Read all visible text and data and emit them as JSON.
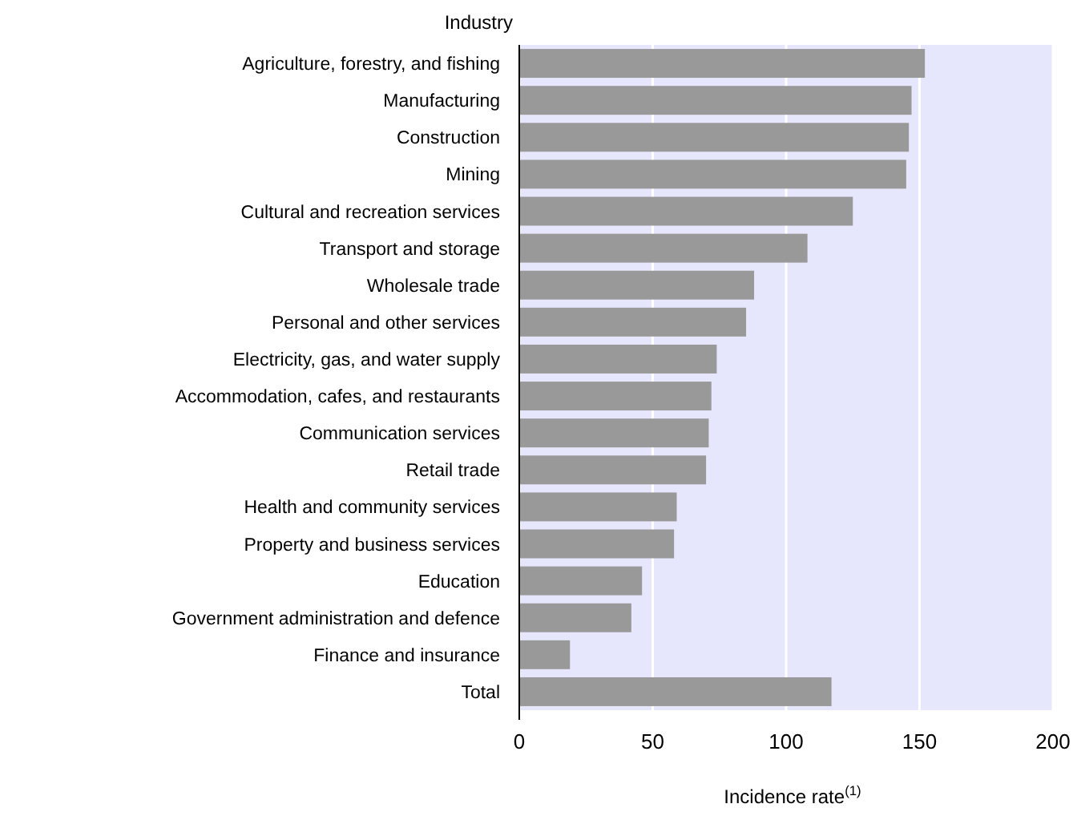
{
  "chart_data": {
    "type": "bar",
    "orientation": "horizontal",
    "ylabel": "Industry",
    "xlabel": "Incidence rate$^{(1)}$",
    "categories": [
      "Agriculture, forestry, and fishing",
      "Manufacturing",
      "Construction",
      "Mining",
      "Cultural and recreation services",
      "Transport and storage",
      "Wholesale trade",
      "Personal and other services",
      "Electricity, gas, and water supply",
      "Accommodation, cafes, and restaurants",
      "Communication services",
      "Retail trade",
      "Health and community services",
      "Property and business services",
      "Education",
      "Government administration and defence",
      "Finance and insurance",
      "Total"
    ],
    "values": [
      152,
      147,
      146,
      145,
      125,
      108,
      88,
      85,
      74,
      72,
      71,
      70,
      59,
      58,
      46,
      42,
      19,
      117
    ],
    "color": "#999999",
    "xlim": [
      0,
      200
    ],
    "xticks": [
      0,
      50,
      100,
      150,
      200
    ],
    "grid": "x"
  }
}
